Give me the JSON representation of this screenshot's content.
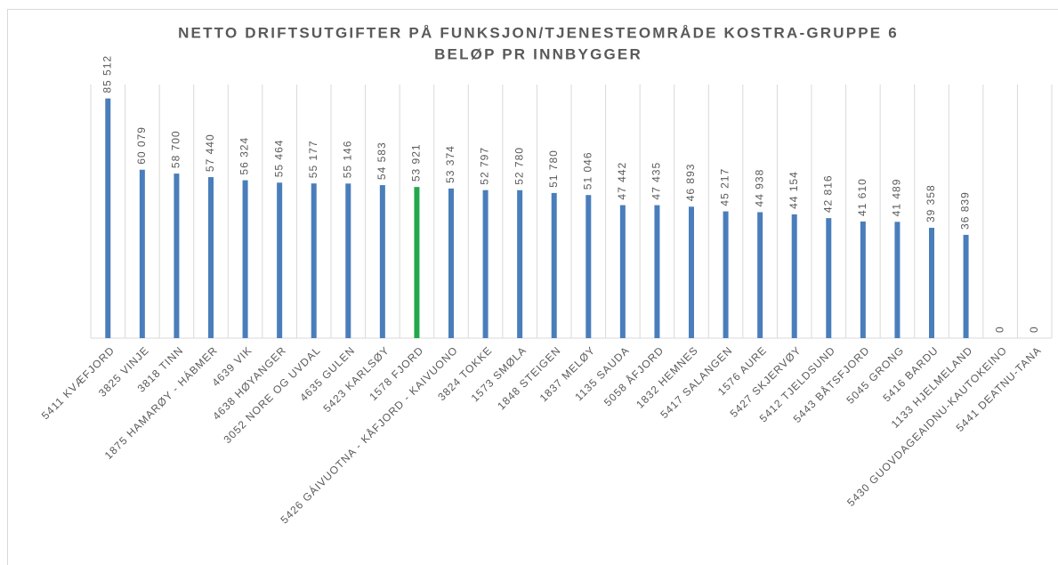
{
  "chart_data": {
    "type": "bar",
    "title": "NETTO DRIFTSUTGIFTER PÅ FUNKSJON/TJENESTEOMRÅDE KOSTRA-GRUPPE 6",
    "subtitle": "BELØP PR INNBYGGER",
    "categories": [
      "5411 KVÆFJORD",
      "3825 VINJE",
      "3818 TINN",
      "1875 HAMARØY - HÁBMER",
      "4639 VIK",
      "4638 HØYANGER",
      "3052 NORE OG UVDAL",
      "4635 GULEN",
      "5423 KARLSØY",
      "1578 FJORD",
      "5426 GÁIVUOTNA - KÅFJORD - KAIVUONO",
      "3824 TOKKE",
      "1573 SMØLA",
      "1848 STEIGEN",
      "1837 MELØY",
      "1135 SAUDA",
      "5058 ÅFJORD",
      "1832 HEMNES",
      "5417 SALANGEN",
      "1576 AURE",
      "5427 SKJERVØY",
      "5412 TJELDSUND",
      "5443 BÅTSFJORD",
      "5045 GRONG",
      "5416 BARDU",
      "1133 HJELMELAND",
      "5430 GUOVDAGEAIDNU-KAUTOKEINO",
      "5441 DEATNU-TANA"
    ],
    "values": [
      85512,
      60079,
      58700,
      57440,
      56324,
      55464,
      55177,
      55146,
      54583,
      53921,
      53374,
      52797,
      52780,
      51780,
      51046,
      47442,
      47435,
      46893,
      45217,
      44938,
      44154,
      42816,
      41610,
      41489,
      39358,
      36839,
      0,
      0
    ],
    "value_labels": [
      "85 512",
      "60 079",
      "58 700",
      "57 440",
      "56 324",
      "55 464",
      "55 177",
      "55 146",
      "54 583",
      "53 921",
      "53 374",
      "52 797",
      "52 780",
      "51 780",
      "51 046",
      "47 442",
      "47 435",
      "46 893",
      "45 217",
      "44 938",
      "44 154",
      "42 816",
      "41 610",
      "41 489",
      "39 358",
      "36 839",
      "0",
      "0"
    ],
    "colors": [
      "#4a7ebb",
      "#4a7ebb",
      "#4a7ebb",
      "#4a7ebb",
      "#4a7ebb",
      "#4a7ebb",
      "#4a7ebb",
      "#4a7ebb",
      "#4a7ebb",
      "#22a84a",
      "#4a7ebb",
      "#4a7ebb",
      "#4a7ebb",
      "#4a7ebb",
      "#4a7ebb",
      "#4a7ebb",
      "#4a7ebb",
      "#4a7ebb",
      "#4a7ebb",
      "#4a7ebb",
      "#4a7ebb",
      "#4a7ebb",
      "#4a7ebb",
      "#4a7ebb",
      "#4a7ebb",
      "#4a7ebb",
      "#4a7ebb",
      "#4a7ebb"
    ],
    "ylim": [
      0,
      100000
    ]
  }
}
